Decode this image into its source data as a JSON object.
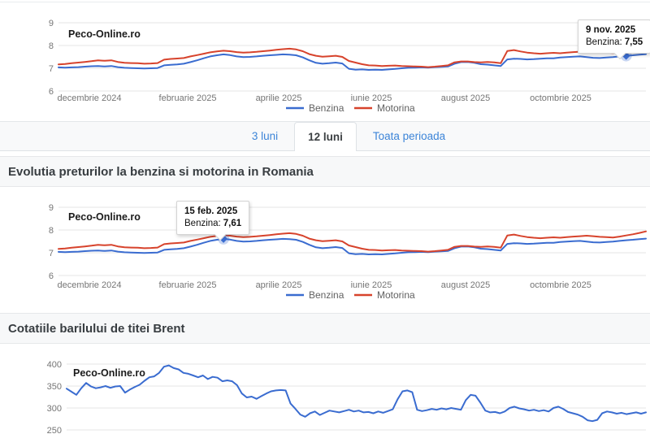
{
  "brand": "Peco-Online.ro",
  "tabs": [
    {
      "label": "3 luni",
      "active": false
    },
    {
      "label": "12 luni",
      "active": true
    },
    {
      "label": "Toata perioada",
      "active": false
    }
  ],
  "headings": {
    "prices": "Evolutia preturilor la benzina si motorina in Romania",
    "brent": "Cotatiile barilului de titei Brent"
  },
  "colors": {
    "benzina": "#3a6cd0",
    "motorina": "#d7432c",
    "brent": "#3a6cd0",
    "link_blue": "#3d85d8",
    "axis_label": "#757575",
    "gridline": "#e6e6e6"
  },
  "chart_data": [
    {
      "type": "line",
      "period": "12 luni",
      "watermark": "Peco-Online.ro",
      "grid": true,
      "legend_position": "bottom",
      "y_ticks": [
        6,
        7,
        8,
        9
      ],
      "ylim": [
        6,
        9
      ],
      "x_tick_labels": [
        "decembrie 2024",
        "februarie 2025",
        "aprilie 2025",
        "iunie 2025",
        "august 2025",
        "octombrie 2025"
      ],
      "annotation": {
        "date": "9 nov. 2025",
        "series_label": "Benzina:",
        "value": "7,55",
        "marker_series": 0,
        "marker_index": 86
      },
      "series": [
        {
          "name": "Benzina",
          "color": "#3a6cd0",
          "values": [
            7.04,
            7.03,
            7.04,
            7.05,
            7.07,
            7.09,
            7.1,
            7.08,
            7.1,
            7.05,
            7.02,
            7.01,
            7.0,
            6.99,
            7.0,
            7.01,
            7.13,
            7.15,
            7.17,
            7.2,
            7.27,
            7.35,
            7.44,
            7.52,
            7.57,
            7.61,
            7.58,
            7.52,
            7.49,
            7.5,
            7.52,
            7.55,
            7.57,
            7.59,
            7.61,
            7.6,
            7.57,
            7.48,
            7.35,
            7.24,
            7.2,
            7.22,
            7.25,
            7.21,
            6.98,
            6.94,
            6.95,
            6.93,
            6.94,
            6.93,
            6.95,
            6.97,
            7.0,
            7.02,
            7.03,
            7.04,
            7.03,
            7.05,
            7.06,
            7.08,
            7.2,
            7.27,
            7.28,
            7.24,
            7.18,
            7.16,
            7.13,
            7.1,
            7.39,
            7.42,
            7.41,
            7.39,
            7.4,
            7.42,
            7.44,
            7.44,
            7.47,
            7.49,
            7.51,
            7.52,
            7.49,
            7.46,
            7.45,
            7.47,
            7.49,
            7.52,
            7.55,
            7.57,
            7.6,
            7.62
          ]
        },
        {
          "name": "Motorina",
          "color": "#d7432c",
          "values": [
            7.17,
            7.19,
            7.22,
            7.25,
            7.28,
            7.31,
            7.35,
            7.33,
            7.35,
            7.28,
            7.24,
            7.23,
            7.22,
            7.2,
            7.21,
            7.23,
            7.38,
            7.41,
            7.43,
            7.45,
            7.52,
            7.58,
            7.64,
            7.7,
            7.74,
            7.77,
            7.75,
            7.71,
            7.69,
            7.7,
            7.72,
            7.75,
            7.78,
            7.81,
            7.84,
            7.86,
            7.83,
            7.75,
            7.62,
            7.55,
            7.51,
            7.53,
            7.55,
            7.5,
            7.32,
            7.25,
            7.18,
            7.13,
            7.12,
            7.1,
            7.11,
            7.12,
            7.1,
            7.09,
            7.08,
            7.07,
            7.05,
            7.07,
            7.1,
            7.13,
            7.26,
            7.3,
            7.3,
            7.27,
            7.26,
            7.28,
            7.26,
            7.22,
            7.76,
            7.8,
            7.74,
            7.69,
            7.66,
            7.64,
            7.66,
            7.68,
            7.66,
            7.69,
            7.71,
            7.73,
            7.75,
            7.73,
            7.7,
            7.69,
            7.67,
            7.71,
            7.76,
            7.81,
            7.87,
            7.94
          ]
        }
      ]
    },
    {
      "type": "line",
      "period": "12 luni",
      "watermark": "Peco-Online.ro",
      "grid": true,
      "legend_position": "bottom",
      "y_ticks": [
        6,
        7,
        8,
        9
      ],
      "ylim": [
        6,
        9
      ],
      "x_tick_labels": [
        "decembrie 2024",
        "februarie 2025",
        "aprilie 2025",
        "iunie 2025",
        "august 2025",
        "octombrie 2025"
      ],
      "annotation": {
        "date": "15 feb. 2025",
        "series_label": "Benzina:",
        "value": "7,61",
        "marker_series": 0,
        "marker_index": 25
      },
      "series": [
        {
          "name": "Benzina",
          "color": "#3a6cd0",
          "values": [
            7.04,
            7.03,
            7.04,
            7.05,
            7.07,
            7.09,
            7.1,
            7.08,
            7.1,
            7.05,
            7.02,
            7.01,
            7.0,
            6.99,
            7.0,
            7.01,
            7.13,
            7.15,
            7.17,
            7.2,
            7.27,
            7.35,
            7.44,
            7.52,
            7.57,
            7.61,
            7.58,
            7.52,
            7.49,
            7.5,
            7.52,
            7.55,
            7.57,
            7.59,
            7.61,
            7.6,
            7.57,
            7.48,
            7.35,
            7.24,
            7.2,
            7.22,
            7.25,
            7.21,
            6.98,
            6.94,
            6.95,
            6.93,
            6.94,
            6.93,
            6.95,
            6.97,
            7.0,
            7.02,
            7.03,
            7.04,
            7.03,
            7.05,
            7.06,
            7.08,
            7.2,
            7.27,
            7.28,
            7.24,
            7.18,
            7.16,
            7.13,
            7.1,
            7.39,
            7.42,
            7.41,
            7.39,
            7.4,
            7.42,
            7.44,
            7.44,
            7.47,
            7.49,
            7.51,
            7.52,
            7.49,
            7.46,
            7.45,
            7.47,
            7.49,
            7.52,
            7.55,
            7.57,
            7.6,
            7.62
          ]
        },
        {
          "name": "Motorina",
          "color": "#d7432c",
          "values": [
            7.17,
            7.19,
            7.22,
            7.25,
            7.28,
            7.31,
            7.35,
            7.33,
            7.35,
            7.28,
            7.24,
            7.23,
            7.22,
            7.2,
            7.21,
            7.23,
            7.38,
            7.41,
            7.43,
            7.45,
            7.52,
            7.58,
            7.64,
            7.7,
            7.74,
            7.77,
            7.75,
            7.71,
            7.69,
            7.7,
            7.72,
            7.75,
            7.78,
            7.81,
            7.84,
            7.86,
            7.83,
            7.75,
            7.62,
            7.55,
            7.51,
            7.53,
            7.55,
            7.5,
            7.32,
            7.25,
            7.18,
            7.13,
            7.12,
            7.1,
            7.11,
            7.12,
            7.1,
            7.09,
            7.08,
            7.07,
            7.05,
            7.07,
            7.1,
            7.13,
            7.26,
            7.3,
            7.3,
            7.27,
            7.26,
            7.28,
            7.26,
            7.22,
            7.76,
            7.8,
            7.74,
            7.69,
            7.66,
            7.64,
            7.66,
            7.68,
            7.66,
            7.69,
            7.71,
            7.73,
            7.75,
            7.73,
            7.7,
            7.69,
            7.67,
            7.71,
            7.76,
            7.81,
            7.87,
            7.94
          ]
        }
      ]
    },
    {
      "type": "line",
      "watermark": "Peco-Online.ro",
      "grid": true,
      "y_ticks": [
        250,
        300,
        350,
        400
      ],
      "ylim": [
        250,
        400
      ],
      "x_tick_labels": [],
      "series": [
        {
          "name": "Brent",
          "color": "#3a6cd0",
          "values": [
            344,
            337,
            330,
            345,
            357,
            349,
            345,
            347,
            350,
            346,
            349,
            350,
            335,
            342,
            348,
            353,
            362,
            370,
            372,
            380,
            394,
            397,
            391,
            388,
            380,
            378,
            374,
            370,
            374,
            366,
            371,
            369,
            361,
            363,
            361,
            352,
            333,
            324,
            326,
            321,
            327,
            333,
            338,
            340,
            341,
            340,
            310,
            298,
            285,
            280,
            288,
            292,
            284,
            289,
            294,
            292,
            290,
            293,
            296,
            292,
            294,
            290,
            291,
            288,
            292,
            289,
            293,
            297,
            320,
            338,
            340,
            336,
            296,
            293,
            295,
            298,
            296,
            299,
            297,
            300,
            298,
            296,
            318,
            330,
            328,
            312,
            294,
            290,
            291,
            288,
            292,
            300,
            303,
            299,
            297,
            294,
            296,
            293,
            295,
            292,
            300,
            303,
            298,
            291,
            288,
            285,
            280,
            272,
            270,
            273,
            288,
            292,
            290,
            287,
            289,
            286,
            288,
            290,
            287,
            290
          ]
        }
      ]
    }
  ]
}
